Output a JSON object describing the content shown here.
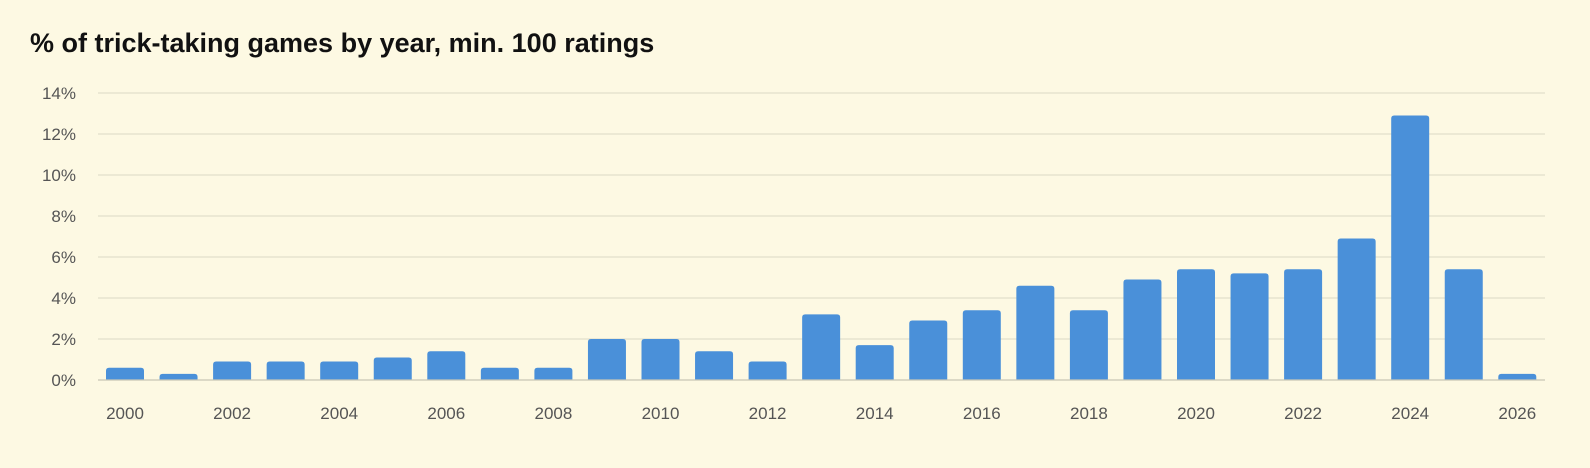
{
  "colors": {
    "background": "#fdf9e3",
    "bar": "#4a90d9",
    "grid": "#dcd9c6",
    "tick_text": "#555555",
    "title_text": "#111111"
  },
  "chart_data": {
    "type": "bar",
    "title": "% of trick-taking games by year, min. 100 ratings",
    "xlabel": "",
    "ylabel": "",
    "ylim": [
      0,
      14
    ],
    "y_ticks": [
      0,
      2,
      4,
      6,
      8,
      10,
      12,
      14
    ],
    "y_tick_labels": [
      "0%",
      "2%",
      "4%",
      "6%",
      "8%",
      "10%",
      "12%",
      "14%"
    ],
    "x_tick_labels": [
      "2000",
      "2002",
      "2004",
      "2006",
      "2008",
      "2010",
      "2012",
      "2014",
      "2016",
      "2018",
      "2020",
      "2022",
      "2024",
      "2026"
    ],
    "grid": true,
    "legend": "none",
    "categories": [
      2000,
      2001,
      2002,
      2003,
      2004,
      2005,
      2006,
      2007,
      2008,
      2009,
      2010,
      2011,
      2012,
      2013,
      2014,
      2015,
      2016,
      2017,
      2018,
      2019,
      2020,
      2021,
      2022,
      2023,
      2024,
      2025,
      2026
    ],
    "values": [
      0.6,
      0.3,
      0.9,
      0.9,
      0.9,
      1.1,
      1.4,
      0.6,
      0.6,
      2.0,
      2.0,
      1.4,
      0.9,
      3.2,
      1.7,
      2.9,
      3.4,
      4.6,
      3.4,
      4.9,
      5.4,
      5.2,
      5.4,
      6.9,
      12.9,
      5.4,
      0.3
    ]
  }
}
